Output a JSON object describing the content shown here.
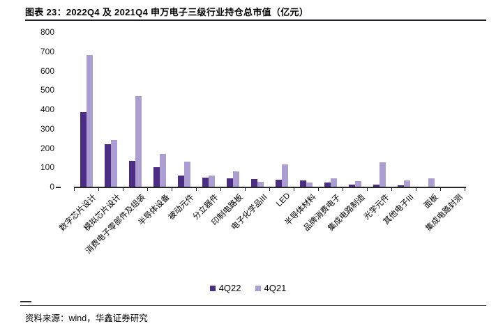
{
  "header": {
    "title": "图表 23：2022Q4 及 2021Q4 申万电子三级行业持仓总市值（亿元）"
  },
  "chart_data": {
    "type": "bar",
    "title": "2022Q4 及 2021Q4 申万电子三级行业持仓总市值",
    "unit": "亿元",
    "categories": [
      "数字芯片设计",
      "模拟芯片设计",
      "消费电子零部件及组装",
      "半导体设备",
      "被动元件",
      "分立器件",
      "印制电路板",
      "电子化学品III",
      "LED",
      "半导体材料",
      "品牌消费电子",
      "集成电路制造",
      "光学元件",
      "其他电子III",
      "面板",
      "集成电路封测"
    ],
    "series": [
      {
        "name": "4Q22",
        "color": "#4B2E83",
        "values": [
          385,
          220,
          135,
          100,
          58,
          48,
          42,
          38,
          36,
          33,
          20,
          12,
          11,
          8,
          0,
          0
        ]
      },
      {
        "name": "4Q21",
        "color": "#AC9ED3",
        "values": [
          680,
          240,
          467,
          168,
          130,
          58,
          78,
          26,
          116,
          22,
          42,
          30,
          127,
          34,
          43,
          0
        ]
      }
    ],
    "ylim": [
      0,
      800
    ],
    "ytick_step": 100,
    "xlabel": "",
    "ylabel": "",
    "grid": false,
    "legend_position": "bottom"
  },
  "footer": {
    "source": "资料来源：wind，华鑫证券研究"
  }
}
